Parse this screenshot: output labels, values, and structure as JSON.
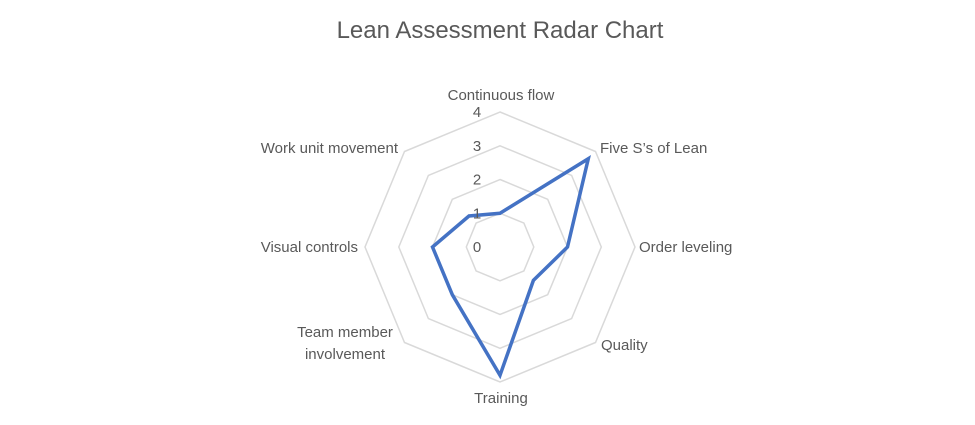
{
  "chart_data": {
    "type": "radar",
    "title": "Lean Assessment Radar Chart",
    "categories": [
      "Continuous flow",
      "Five S’s of Lean",
      "Order leveling",
      "Quality",
      "Training",
      "Team member involvement",
      "Visual controls",
      "Work unit movement"
    ],
    "series": [
      {
        "values": [
          1,
          3.7,
          2,
          1.4,
          3.8,
          2,
          2,
          1.3
        ],
        "color": "#4472c4"
      }
    ],
    "rlim": [
      0,
      4
    ],
    "ticks": [
      "0",
      "1",
      "2",
      "3",
      "4"
    ],
    "grid": true,
    "legend": "none"
  }
}
